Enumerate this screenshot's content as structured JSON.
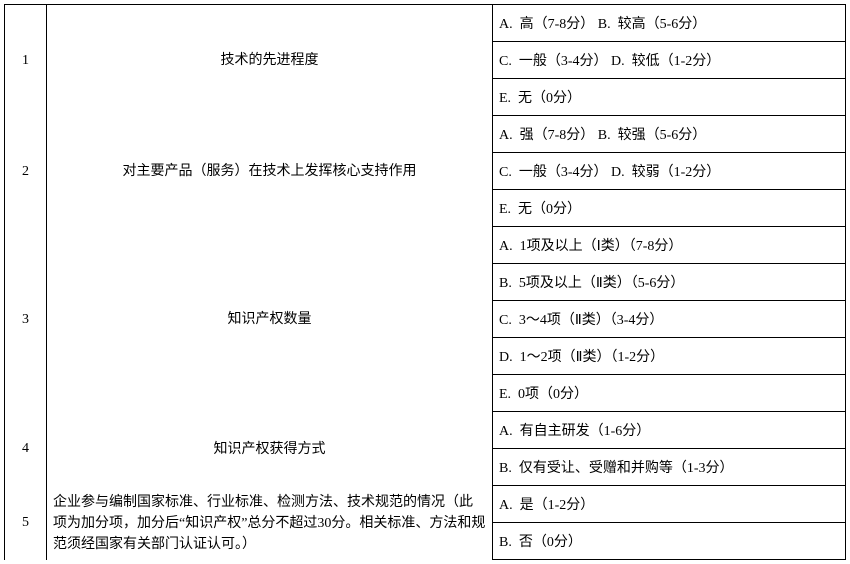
{
  "rows": [
    {
      "num": "1",
      "label": "技术的先进程度",
      "label_align": "center",
      "options": [
        "A.  高（7-8分） B.  较高（5-6分）",
        "C.  一般（3-4分） D.  较低（1-2分）",
        "E.  无（0分）"
      ]
    },
    {
      "num": "2",
      "label": "对主要产品（服务）在技术上发挥核心支持作用",
      "label_align": "center",
      "options": [
        "A.  强（7-8分） B.  较强（5-6分）",
        "C.  一般（3-4分） D.  较弱（1-2分）",
        "E.  无（0分）"
      ]
    },
    {
      "num": "3",
      "label": "知识产权数量",
      "label_align": "center",
      "options": [
        "A.  1项及以上（Ⅰ类）（7-8分）",
        "B.  5项及以上（Ⅱ类）（5-6分）",
        "C.  3～4项（Ⅱ类）（3-4分）",
        "D.  1～2项（Ⅱ类）（1-2分）",
        "E.  0项（0分）"
      ]
    },
    {
      "num": "4",
      "label": "知识产权获得方式",
      "label_align": "center",
      "options": [
        "A.  有自主研发（1-6分）",
        "B.  仅有受让、受赠和并购等（1-3分）"
      ]
    },
    {
      "num": "5",
      "label": "企业参与编制国家标准、行业标准、检测方法、技术规范的情况（此项为加分项，加分后“知识产权”总分不超过30分。相关标准、方法和规范须经国家有关部门认证认可。）",
      "label_align": "left",
      "options": [
        "A.  是（1-2分）",
        "B.  否（0分）"
      ]
    }
  ]
}
